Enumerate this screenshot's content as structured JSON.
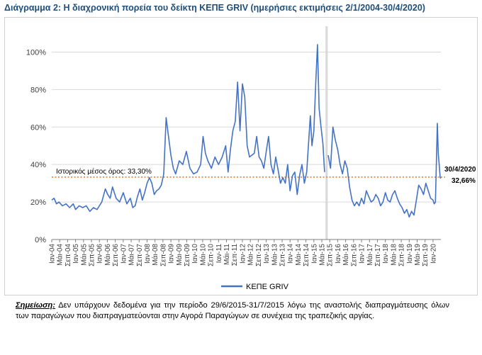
{
  "title": "Διάγραμμα 2: Η διαχρονική πορεία του δείκτη ΚΕΠΕ GRIV (ημερήσιες εκτιμήσεις 2/1/2004-30/4/2020)",
  "note": {
    "label": "Σημείωση:",
    "text": " Δεν υπάρχουν δεδομένα για την περίοδο 29/6/2015-31/7/2015 λόγω της αναστολής διαπραγμάτευσης όλων των παραγώγων που διαπραγματεύονται στην Αγορά Παραγώγων σε συνέχεια της τραπεζικής αργίας."
  },
  "colors": {
    "series": "#4472c4",
    "mean_line": "#ed7d31",
    "gap_band": "#d9d9d9",
    "gridline": "#d9d9d9",
    "axis": "#7f7f7f",
    "annotation_text": "#000000"
  },
  "chart_data": {
    "type": "line",
    "series": [
      {
        "name": "ΚΕΠΕ GRIV",
        "x": [
          2004.0,
          2004.1,
          2004.2,
          2004.3,
          2004.45,
          2004.6,
          2004.75,
          2004.9,
          2005.0,
          2005.15,
          2005.3,
          2005.45,
          2005.6,
          2005.75,
          2005.9,
          2006.0,
          2006.1,
          2006.25,
          2006.35,
          2006.45,
          2006.55,
          2006.7,
          2006.85,
          2007.0,
          2007.15,
          2007.3,
          2007.4,
          2007.5,
          2007.6,
          2007.7,
          2007.8,
          2007.9,
          2008.0,
          2008.1,
          2008.2,
          2008.3,
          2008.4,
          2008.5,
          2008.6,
          2008.7,
          2008.8,
          2008.9,
          2009.0,
          2009.1,
          2009.2,
          2009.35,
          2009.5,
          2009.65,
          2009.8,
          2009.95,
          2010.1,
          2010.25,
          2010.35,
          2010.45,
          2010.55,
          2010.7,
          2010.85,
          2011.0,
          2011.15,
          2011.3,
          2011.4,
          2011.5,
          2011.6,
          2011.7,
          2011.8,
          2011.9,
          2012.0,
          2012.1,
          2012.2,
          2012.3,
          2012.4,
          2012.5,
          2012.6,
          2012.7,
          2012.8,
          2012.9,
          2013.0,
          2013.1,
          2013.2,
          2013.3,
          2013.4,
          2013.5,
          2013.6,
          2013.7,
          2013.8,
          2013.9,
          2014.0,
          2014.1,
          2014.2,
          2014.3,
          2014.4,
          2014.5,
          2014.6,
          2014.7,
          2014.78,
          2014.85,
          2014.92,
          2015.0,
          2015.08,
          2015.15,
          2015.22,
          2015.3,
          2015.38,
          2015.45,
          2015.6,
          2015.7,
          2015.8,
          2015.9,
          2016.0,
          2016.1,
          2016.2,
          2016.3,
          2016.4,
          2016.5,
          2016.6,
          2016.7,
          2016.8,
          2016.9,
          2017.0,
          2017.1,
          2017.2,
          2017.3,
          2017.4,
          2017.5,
          2017.6,
          2017.7,
          2017.8,
          2017.9,
          2018.0,
          2018.1,
          2018.2,
          2018.3,
          2018.4,
          2018.5,
          2018.6,
          2018.7,
          2018.8,
          2018.9,
          2019.0,
          2019.1,
          2019.2,
          2019.3,
          2019.4,
          2019.5,
          2019.6,
          2019.7,
          2019.8,
          2019.9,
          2020.0,
          2020.05,
          2020.1,
          2020.15,
          2020.18,
          2020.22,
          2020.26,
          2020.3,
          2020.33
        ],
        "y": [
          21,
          22,
          19,
          20,
          18,
          19,
          17,
          19,
          16,
          18,
          17,
          18,
          15,
          17,
          16,
          18,
          20,
          27,
          24,
          22,
          28,
          22,
          20,
          25,
          19,
          22,
          17,
          18,
          23,
          27,
          21,
          25,
          30,
          33,
          30,
          24,
          26,
          27,
          29,
          35,
          65,
          55,
          45,
          38,
          35,
          42,
          40,
          47,
          38,
          35,
          36,
          40,
          55,
          46,
          42,
          38,
          44,
          40,
          44,
          50,
          36,
          48,
          58,
          63,
          84,
          58,
          83,
          76,
          50,
          44,
          45,
          46,
          55,
          44,
          42,
          38,
          47,
          55,
          40,
          35,
          44,
          37,
          30,
          33,
          30,
          40,
          26,
          34,
          36,
          24,
          34,
          40,
          30,
          36,
          52,
          66,
          50,
          58,
          84,
          104,
          70,
          60,
          51,
          36,
          45,
          38,
          60,
          53,
          48,
          40,
          35,
          42,
          38,
          28,
          21,
          18,
          20,
          18,
          22,
          19,
          26,
          23,
          20,
          21,
          24,
          22,
          18,
          20,
          25,
          21,
          20,
          24,
          26,
          22,
          19,
          17,
          14,
          16,
          12,
          15,
          13,
          21,
          29,
          27,
          24,
          30,
          26,
          22,
          21,
          19,
          20,
          45,
          62,
          46,
          40,
          33,
          32.66
        ]
      }
    ],
    "historical_mean": 33.3,
    "mean_label": "Ιστορικός μέσος όρος: 33,30%",
    "end_annotation": {
      "date": "30/4/2020",
      "value": "32,66%"
    },
    "gap_period": {
      "from": 2015.49,
      "to": 2015.58
    },
    "ylim": [
      0,
      110
    ],
    "yticks": [
      0,
      20,
      40,
      60,
      80,
      100
    ],
    "ytick_labels": [
      "0%",
      "20%",
      "40%",
      "60%",
      "80%",
      "100%"
    ],
    "xlim": [
      2004.0,
      2020.33
    ],
    "xtick_labels": [
      "Ιαν-04",
      "Μάι-04",
      "Σεπ-04",
      "Ιαν-05",
      "Μάι-05",
      "Σεπ-05",
      "Ιαν-06",
      "Μάι-06",
      "Σεπ-06",
      "Ιαν-07",
      "Μάι-07",
      "Σεπ-07",
      "Ιαν-08",
      "Μάι-08",
      "Σεπ-08",
      "Ιαν-09",
      "Μάι-09",
      "Σεπ-09",
      "Ιαν-10",
      "Μάι-10",
      "Σεπ-10",
      "Ιαν-11",
      "Μάι-11",
      "Σεπ-11",
      "Ιαν-12",
      "Μάι-12",
      "Σεπ-12",
      "Ιαν-13",
      "Μάι-13",
      "Σεπ-13",
      "Ιαν-14",
      "Μάι-14",
      "Σεπ-14",
      "Ιαν-15",
      "Μάι-15",
      "Σεπ-15",
      "Ιαν-16",
      "Μάι-16",
      "Σεπ-16",
      "Ιαν-17",
      "Μάι-17",
      "Σεπ-17",
      "Ιαν-18",
      "Μάι-18",
      "Σεπ-18",
      "Ιαν-19",
      "Μάι-19",
      "Σεπ-19",
      "Ιαν-20"
    ],
    "legend": {
      "label": "ΚΕΠΕ GRIV",
      "placement": "bottom-center"
    },
    "grid": true
  }
}
